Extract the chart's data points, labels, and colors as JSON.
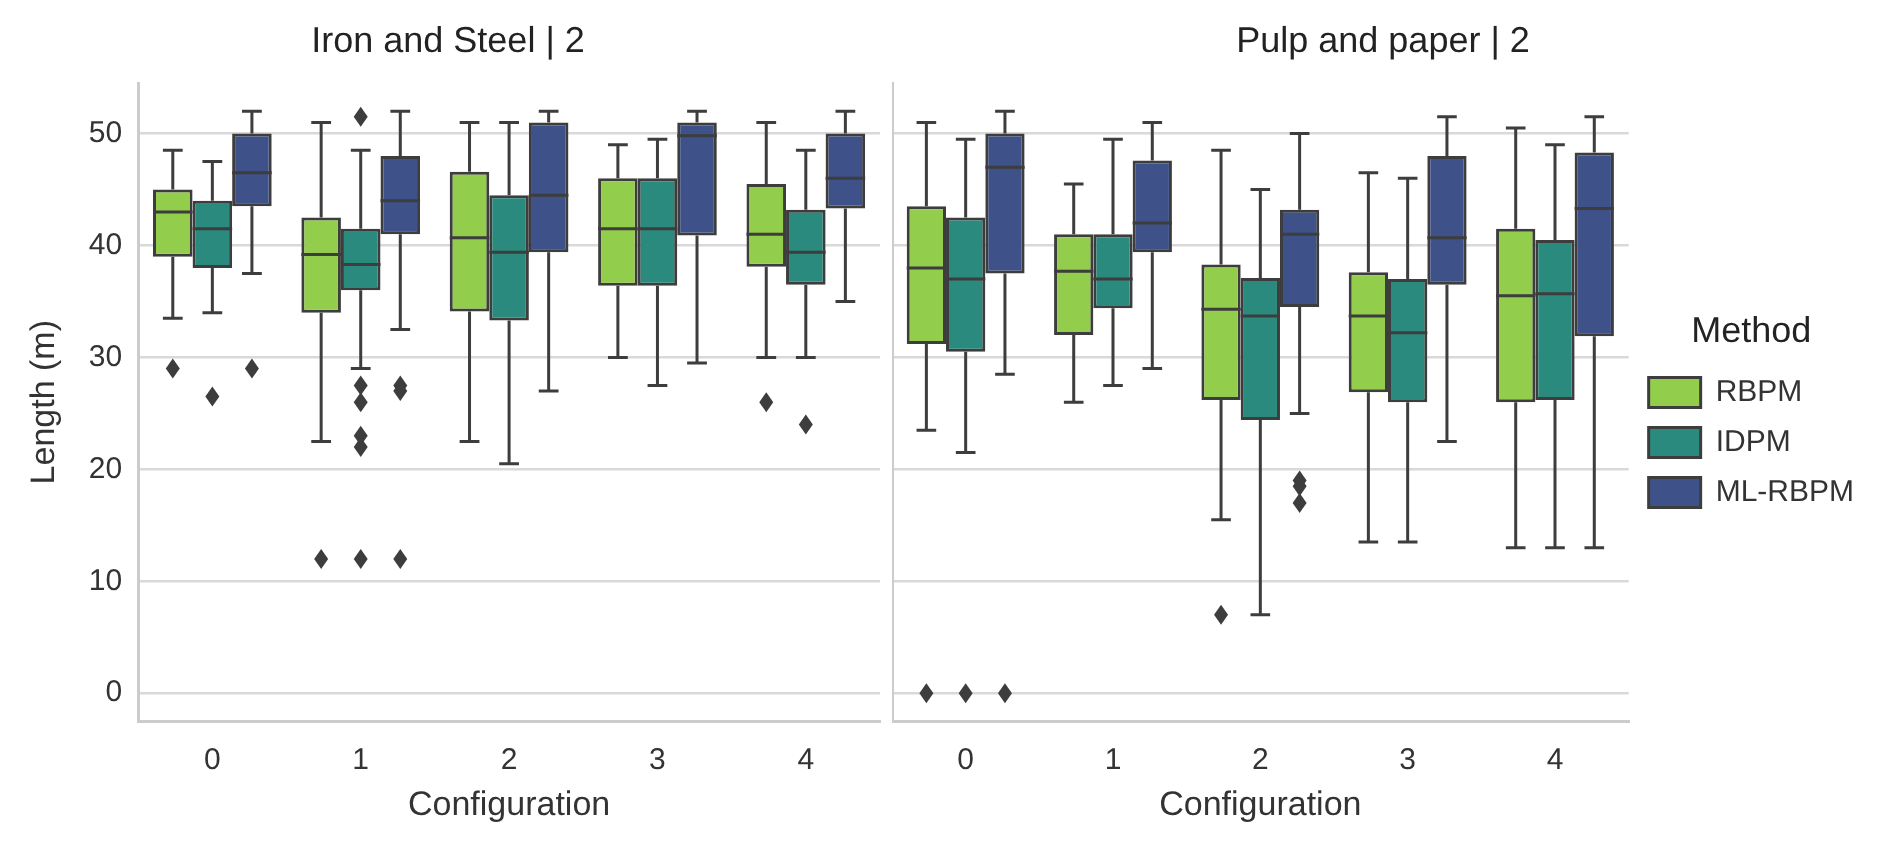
{
  "chart_data": [
    {
      "type": "box",
      "title": "Iron and Steel | 2",
      "xlabel": "Configuration",
      "ylabel": "Length (m)",
      "categories": [
        "0",
        "1",
        "2",
        "3",
        "4"
      ],
      "ylim": [
        -2.5,
        54.5
      ],
      "yticks": [
        0,
        10,
        20,
        30,
        40,
        50
      ],
      "grid": "y",
      "legend": false,
      "series": [
        {
          "color": "#93cd4c",
          "boxes": [
            {
              "low": 33.5,
              "q1": 39,
              "median": 43,
              "q3": 45,
              "high": 48.5,
              "outliers": [
                29
              ]
            },
            {
              "low": 22.5,
              "q1": 34,
              "median": 39.2,
              "q3": 42.5,
              "high": 51,
              "outliers": [
                12
              ]
            },
            {
              "low": 22.5,
              "q1": 34.1,
              "median": 40.7,
              "q3": 46.6,
              "high": 51
            },
            {
              "low": 30,
              "q1": 36.4,
              "median": 41.5,
              "q3": 46,
              "high": 49
            },
            {
              "low": 30,
              "q1": 38.1,
              "median": 41,
              "q3": 45.5,
              "high": 51,
              "outliers": [
                26
              ]
            }
          ]
        },
        {
          "color": "#2a8a7d",
          "boxes": [
            {
              "low": 34,
              "q1": 38,
              "median": 41.5,
              "q3": 44,
              "high": 47.5,
              "outliers": [
                26.5
              ]
            },
            {
              "low": 29,
              "q1": 36,
              "median": 38.3,
              "q3": 41.5,
              "high": 48.5,
              "outliers": [
                51.5,
                27.5,
                26,
                23,
                22,
                12
              ]
            },
            {
              "low": 20.5,
              "q1": 33.3,
              "median": 39.4,
              "q3": 44.5,
              "high": 51
            },
            {
              "low": 27.5,
              "q1": 36.4,
              "median": 41.5,
              "q3": 46,
              "high": 49.5
            },
            {
              "low": 30,
              "q1": 36.5,
              "median": 39.4,
              "q3": 43.2,
              "high": 48.5,
              "outliers": [
                24
              ]
            }
          ]
        },
        {
          "color": "#3e5289",
          "boxes": [
            {
              "low": 37.5,
              "q1": 43.5,
              "median": 46.5,
              "q3": 50,
              "high": 52,
              "outliers": [
                29
              ]
            },
            {
              "low": 32.5,
              "q1": 41,
              "median": 44,
              "q3": 48,
              "high": 52,
              "outliers": [
                27.5,
                27,
                12
              ]
            },
            {
              "low": 27,
              "q1": 39.4,
              "median": 44.5,
              "q3": 51,
              "high": 52
            },
            {
              "low": 29.5,
              "q1": 40.9,
              "median": 49.8,
              "q3": 51,
              "high": 52
            },
            {
              "low": 35,
              "q1": 43.3,
              "median": 46,
              "q3": 50,
              "high": 52
            }
          ]
        }
      ]
    },
    {
      "type": "box",
      "title": "Pulp and paper | 2",
      "xlabel": "Configuration",
      "categories": [
        "0",
        "1",
        "2",
        "3",
        "4"
      ],
      "ylim": [
        -2.5,
        54.5
      ],
      "yticks": [
        0,
        10,
        20,
        30,
        40,
        50
      ],
      "grid": "y",
      "tick_labels": "x",
      "legend": "right",
      "legend_title": "Method",
      "series": [
        {
          "name": "RBPM",
          "color": "#93cd4c",
          "boxes": [
            {
              "low": 23.5,
              "q1": 31.2,
              "median": 38,
              "q3": 43.5,
              "high": 51,
              "outliers": [
                0
              ]
            },
            {
              "low": 26,
              "q1": 32,
              "median": 37.7,
              "q3": 41,
              "high": 45.5
            },
            {
              "low": 15.5,
              "q1": 26.2,
              "median": 34.3,
              "q3": 38.3,
              "high": 48.5,
              "outliers": [
                7
              ]
            },
            {
              "low": 13.5,
              "q1": 26.9,
              "median": 33.7,
              "q3": 37.6,
              "high": 46.5
            },
            {
              "low": 13,
              "q1": 26,
              "median": 35.5,
              "q3": 41.5,
              "high": 50.5
            }
          ]
        },
        {
          "name": "IDPM",
          "color": "#2a8a7d",
          "boxes": [
            {
              "low": 21.5,
              "q1": 30.5,
              "median": 37,
              "q3": 42.5,
              "high": 49.5,
              "outliers": [
                0
              ]
            },
            {
              "low": 27.5,
              "q1": 34.4,
              "median": 37,
              "q3": 41,
              "high": 49.5
            },
            {
              "low": 7,
              "q1": 24.4,
              "median": 33.7,
              "q3": 37.1,
              "high": 45
            },
            {
              "low": 13.5,
              "q1": 26,
              "median": 32.2,
              "q3": 37,
              "high": 46
            },
            {
              "low": 13,
              "q1": 26.2,
              "median": 35.7,
              "q3": 40.5,
              "high": 49
            }
          ]
        },
        {
          "name": "ML-RBPM",
          "color": "#3e5289",
          "boxes": [
            {
              "low": 28.5,
              "q1": 37.5,
              "median": 47,
              "q3": 50,
              "high": 52,
              "outliers": [
                0
              ]
            },
            {
              "low": 29,
              "q1": 39.4,
              "median": 42,
              "q3": 47.6,
              "high": 51
            },
            {
              "low": 25,
              "q1": 34.5,
              "median": 41,
              "q3": 43.2,
              "high": 50,
              "outliers": [
                19,
                18.5,
                17
              ]
            },
            {
              "low": 22.5,
              "q1": 36.5,
              "median": 40.7,
              "q3": 48,
              "high": 51.5
            },
            {
              "low": 13,
              "q1": 31.9,
              "median": 43.3,
              "q3": 48.3,
              "high": 51.5
            }
          ]
        }
      ]
    }
  ]
}
